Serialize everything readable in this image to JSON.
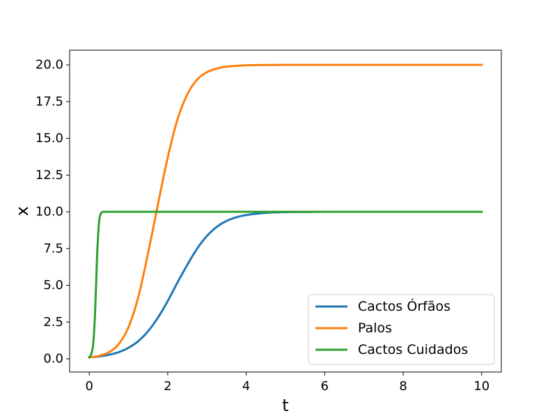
{
  "chart_data": {
    "type": "line",
    "title": "",
    "xlabel": "t",
    "ylabel": "x",
    "xlim": [
      -0.5,
      10.5
    ],
    "ylim": [
      -0.9,
      21.0
    ],
    "xticks": [
      0,
      2,
      4,
      6,
      8,
      10
    ],
    "xtick_labels": [
      "0",
      "2",
      "4",
      "6",
      "8",
      "10"
    ],
    "yticks": [
      0,
      2.5,
      5,
      7.5,
      10,
      12.5,
      15,
      17.5,
      20
    ],
    "ytick_labels": [
      "0.0",
      "2.5",
      "5.0",
      "7.5",
      "10.0",
      "12.5",
      "15.0",
      "17.5",
      "20.0"
    ],
    "grid": false,
    "legend_position": "lower-right",
    "series": [
      {
        "name": "Cactos Órfãos",
        "color": "#1f77b4",
        "x": [
          0,
          0.25,
          0.5,
          0.75,
          1.0,
          1.25,
          1.5,
          1.75,
          2.0,
          2.25,
          2.5,
          2.75,
          3.0,
          3.25,
          3.5,
          3.75,
          4.0,
          4.5,
          5.0,
          5.5,
          6.0,
          7.0,
          8.0,
          9.0,
          10.0
        ],
        "y": [
          0.1,
          0.16,
          0.27,
          0.45,
          0.75,
          1.2,
          1.88,
          2.8,
          3.93,
          5.2,
          6.4,
          7.5,
          8.36,
          8.98,
          9.38,
          9.63,
          9.78,
          9.93,
          9.98,
          9.99,
          10.0,
          10.0,
          10.0,
          10.0,
          10.0
        ]
      },
      {
        "name": "Palos",
        "color": "#ff7f0e",
        "x": [
          0,
          0.25,
          0.5,
          0.75,
          1.0,
          1.25,
          1.5,
          1.75,
          2.0,
          2.25,
          2.5,
          2.75,
          3.0,
          3.25,
          3.5,
          4.0,
          4.5,
          5.0,
          6.0,
          7.0,
          8.0,
          9.0,
          10.0
        ],
        "y": [
          0.1,
          0.2,
          0.45,
          1.0,
          2.15,
          4.2,
          7.2,
          10.5,
          13.7,
          16.3,
          18.0,
          19.0,
          19.5,
          19.75,
          19.88,
          19.97,
          19.99,
          20.0,
          20.0,
          20.0,
          20.0,
          20.0,
          20.0
        ]
      },
      {
        "name": "Cactos Cuidados",
        "color": "#2ca02c",
        "x": [
          0,
          0.05,
          0.1,
          0.15,
          0.2,
          0.25,
          0.3,
          0.35,
          0.5,
          1.0,
          2.0,
          4.0,
          6.0,
          8.0,
          10.0
        ],
        "y": [
          0.1,
          0.3,
          1.0,
          3.2,
          7.0,
          9.3,
          9.9,
          10.0,
          10.0,
          10.0,
          10.0,
          10.0,
          10.0,
          10.0,
          10.0
        ]
      }
    ]
  }
}
